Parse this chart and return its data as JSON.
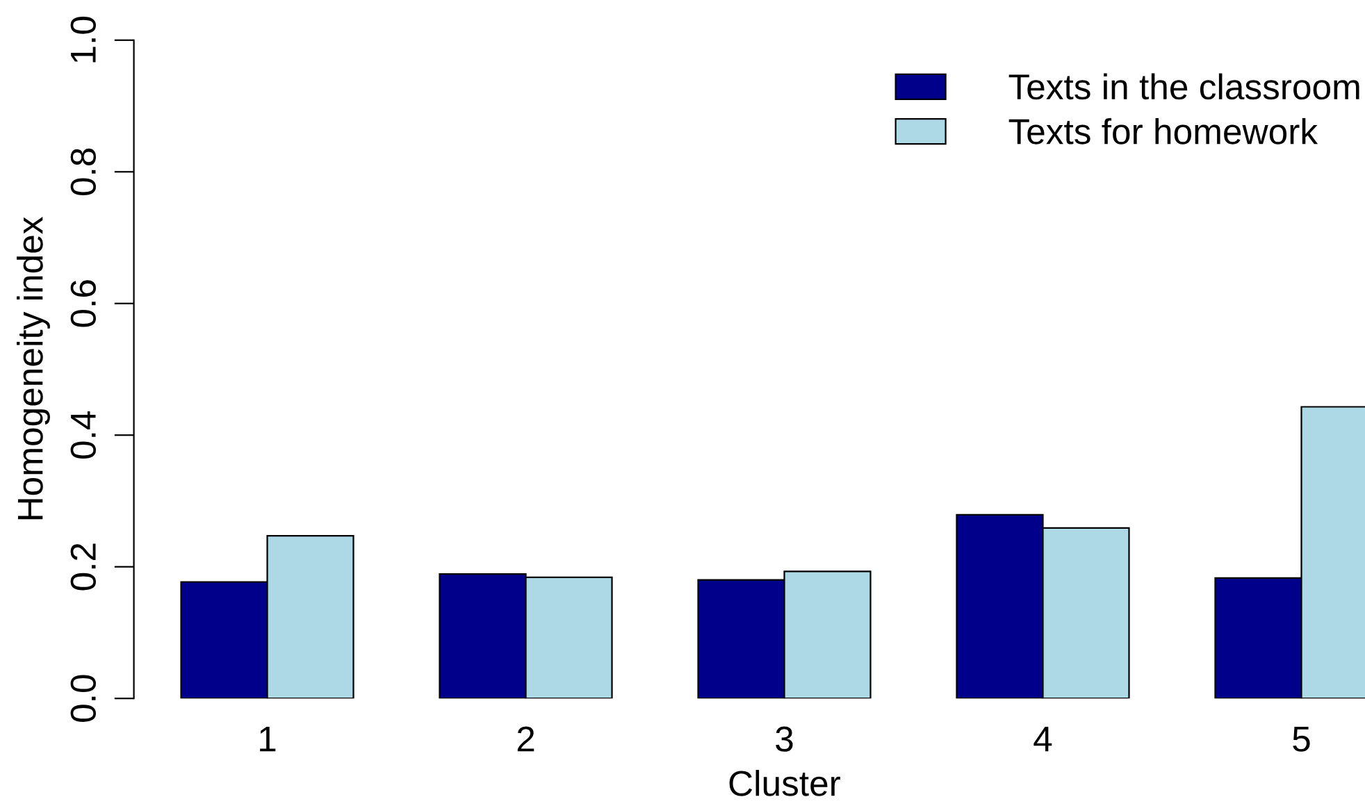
{
  "chart_data": {
    "type": "bar",
    "xlabel": "Cluster",
    "ylabel": "Homogeneity index",
    "categories": [
      "1",
      "2",
      "3",
      "4",
      "5"
    ],
    "series": [
      {
        "name": "Texts in the classroom",
        "color": "#00008b",
        "values": [
          0.177,
          0.189,
          0.18,
          0.279,
          0.183
        ]
      },
      {
        "name": "Texts for homework",
        "color": "#add8e6",
        "values": [
          0.247,
          0.184,
          0.193,
          0.259,
          0.443
        ]
      }
    ],
    "ylim": [
      0,
      1
    ],
    "yticks": [
      {
        "value": 0,
        "label": "0.0"
      },
      {
        "value": 0.2,
        "label": "0.2"
      },
      {
        "value": 0.4,
        "label": "0.4"
      },
      {
        "value": 0.6,
        "label": "0.6"
      },
      {
        "value": 0.8,
        "label": "0.8"
      },
      {
        "value": 1,
        "label": "1.0"
      }
    ],
    "legend": "top right"
  }
}
